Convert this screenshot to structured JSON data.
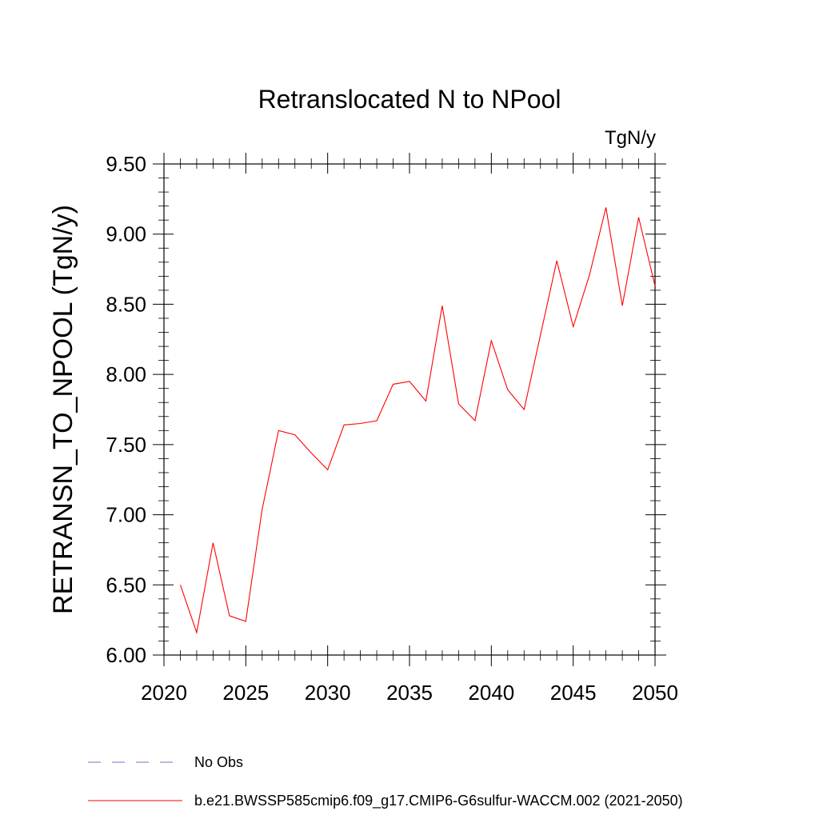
{
  "chart_data": {
    "type": "line",
    "title": "Retranslocated N to NPool",
    "units": "TgN/y",
    "ylabel": "RETRANSN_TO_NPOOL  (TgN/y)",
    "xlabel": "",
    "xlim": [
      2020,
      2050
    ],
    "ylim": [
      6.0,
      9.5
    ],
    "xticks": [
      2020,
      2025,
      2030,
      2035,
      2040,
      2045,
      2050
    ],
    "xtick_labels": [
      "2020",
      "2025",
      "2030",
      "2035",
      "2040",
      "2045",
      "2050"
    ],
    "yticks": [
      6.0,
      6.5,
      7.0,
      7.5,
      8.0,
      8.5,
      9.0,
      9.5
    ],
    "ytick_labels": [
      "6.00",
      "6.50",
      "7.00",
      "7.50",
      "8.00",
      "8.50",
      "9.00",
      "9.50"
    ],
    "grid": false,
    "legend_placement": "bottom",
    "series": [
      {
        "name": "b.e21.BWSSP585cmip6.f09_g17.CMIP6-G6sulfur-WACCM.002 (2021-2050)",
        "color": "#ff0000",
        "style": "solid",
        "x": [
          2021,
          2022,
          2023,
          2024,
          2025,
          2026,
          2027,
          2028,
          2029,
          2030,
          2031,
          2032,
          2033,
          2034,
          2035,
          2036,
          2037,
          2038,
          2039,
          2040,
          2041,
          2042,
          2043,
          2044,
          2045,
          2046,
          2047,
          2048,
          2049,
          2050
        ],
        "values": [
          6.5,
          6.16,
          6.8,
          6.28,
          6.24,
          7.04,
          7.6,
          7.57,
          7.44,
          7.32,
          7.64,
          7.65,
          7.67,
          7.93,
          7.95,
          7.81,
          8.49,
          7.79,
          7.67,
          8.24,
          7.89,
          7.75,
          8.28,
          8.81,
          8.34,
          8.71,
          9.19,
          8.49,
          9.12,
          8.63
        ]
      }
    ],
    "legend": [
      {
        "label": "No Obs",
        "color": "#7f6fbf",
        "style": "dashed"
      },
      {
        "label": "b.e21.BWSSP585cmip6.f09_g17.CMIP6-G6sulfur-WACCM.002 (2021-2050)",
        "color": "#ff0000",
        "style": "solid"
      }
    ]
  }
}
